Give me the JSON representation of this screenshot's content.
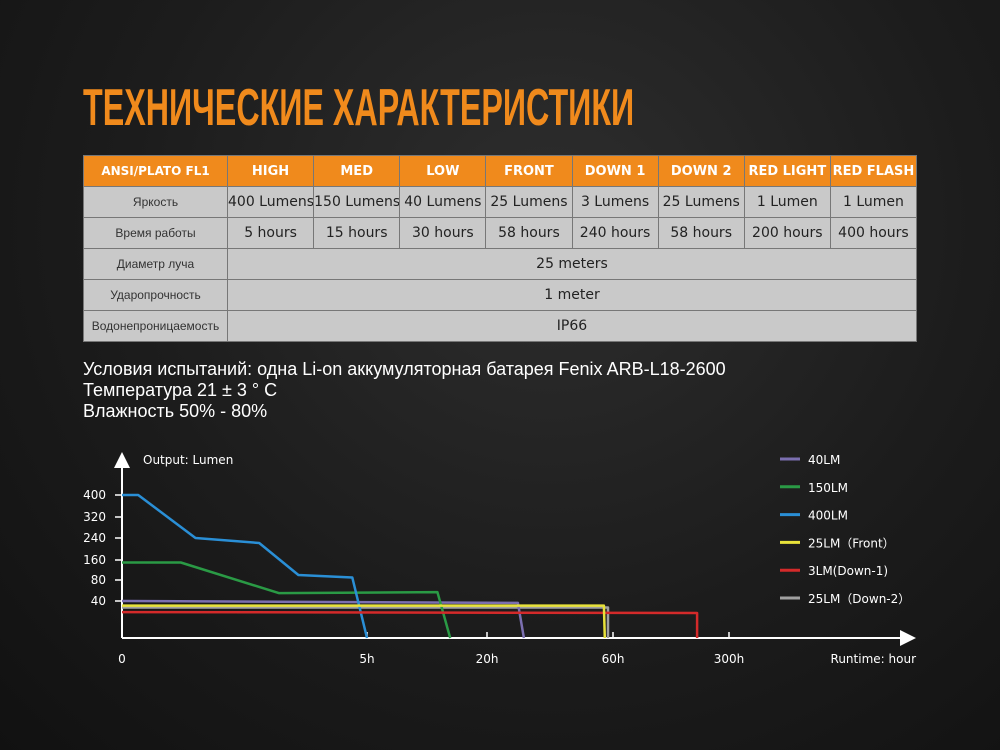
{
  "title": "ТЕХНИЧЕСКИЕ ХАРАКТЕРИСТИКИ",
  "table": {
    "header": [
      "ANSI/PLATO FL1",
      "HIGH",
      "MED",
      "LOW",
      "FRONT",
      "DOWN 1",
      "DOWN 2",
      "RED LIGHT",
      "RED FLASH"
    ],
    "rows": [
      {
        "label": "Яркость",
        "cells": [
          "400 Lumens",
          "150 Lumens",
          "40 Lumens",
          "25 Lumens",
          "3 Lumens",
          "25 Lumens",
          "1 Lumen",
          "1 Lumen"
        ]
      },
      {
        "label": "Время работы",
        "cells": [
          "5 hours",
          "15 hours",
          "30 hours",
          "58 hours",
          "240 hours",
          "58 hours",
          "200 hours",
          "400 hours"
        ]
      },
      {
        "label": "Диаметр луча",
        "value": "25 meters"
      },
      {
        "label": "Ударопрочность",
        "value": "1 meter"
      },
      {
        "label": "Водонепроницаемость",
        "value": "IP66"
      }
    ]
  },
  "conditions": [
    "Условия испытаний: одна Li-on аккумуляторная батарея Fenix ARB-L18-2600",
    "Температура 21 ± 3 ° C",
    "Влажность 50% - 80%"
  ],
  "colors": {
    "accent": "#f08a1c",
    "table_cell": "#c9c9c9"
  },
  "chart_data": {
    "type": "line",
    "ylabel": "Output: Lumen",
    "xlabel": "Runtime: hour",
    "x_ticks": [
      {
        "value": 0,
        "label": "0"
      },
      {
        "value": 5,
        "label": "5h"
      },
      {
        "value": 20,
        "label": "20h"
      },
      {
        "value": 60,
        "label": "60h"
      },
      {
        "value": 300,
        "label": "300h"
      }
    ],
    "y_ticks": [
      {
        "value": 40,
        "label": "40"
      },
      {
        "value": 80,
        "label": "80"
      },
      {
        "value": 160,
        "label": "160"
      },
      {
        "value": 240,
        "label": "240"
      },
      {
        "value": 320,
        "label": "320"
      },
      {
        "value": 400,
        "label": "400"
      }
    ],
    "x_scale": "non-linear (piecewise between ticks)",
    "y_scale": "non-linear (piecewise between ticks)",
    "legend_position": "top-right",
    "grid": false,
    "series": [
      {
        "name": "40LM",
        "color": "#7b6fb0",
        "points": [
          [
            0,
            40
          ],
          [
            29.8,
            38
          ],
          [
            31.7,
            0
          ]
        ]
      },
      {
        "name": "150LM",
        "color": "#2a9a45",
        "points": [
          [
            0,
            150
          ],
          [
            1.2,
            150
          ],
          [
            3.2,
            55
          ],
          [
            13.8,
            57
          ],
          [
            15.4,
            0
          ]
        ]
      },
      {
        "name": "400LM",
        "color": "#2a8fd6",
        "points": [
          [
            0,
            400
          ],
          [
            0.33,
            400
          ],
          [
            1.5,
            240
          ],
          [
            2.8,
            222
          ],
          [
            3.6,
            100
          ],
          [
            4.7,
            90
          ],
          [
            5,
            0
          ]
        ]
      },
      {
        "name": "25LM（Front）",
        "color": "#e8e23a",
        "points": [
          [
            0,
            35
          ],
          [
            57.1,
            35
          ],
          [
            57.4,
            0
          ]
        ]
      },
      {
        "name": "3LM(Down-1)",
        "color": "#d42a2a",
        "points": [
          [
            0,
            28
          ],
          [
            234,
            27
          ],
          [
            234,
            0
          ]
        ]
      },
      {
        "name": "25LM（Down-2）",
        "color": "#a0a0a0",
        "points": [
          [
            0,
            33
          ],
          [
            58.4,
            33
          ],
          [
            58.4,
            0
          ]
        ]
      }
    ]
  }
}
